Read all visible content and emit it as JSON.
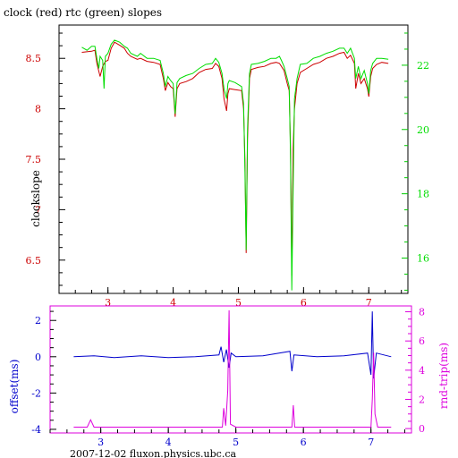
{
  "chart_data": [
    {
      "type": "line",
      "title": "clock (red) rtc (green) slopes",
      "ylabel": "clockslope",
      "x_ticks": [
        3,
        4,
        5,
        6,
        7
      ],
      "xlim": [
        2.25,
        7.6
      ],
      "y_left_ticks": [
        6.5,
        7,
        7.5,
        8,
        8.5
      ],
      "y_left_lim": [
        6.17,
        8.83
      ],
      "y_right_ticks": [
        16,
        18,
        20,
        22
      ],
      "y_right_lim": [
        14.9,
        23.25
      ],
      "grid": false,
      "series": [
        {
          "name": "clock",
          "color": "#cc0000",
          "axis": "left",
          "points": [
            [
              2.6,
              8.56
            ],
            [
              2.75,
              8.57
            ],
            [
              2.8,
              8.58
            ],
            [
              2.83,
              8.45
            ],
            [
              2.88,
              8.32
            ],
            [
              2.92,
              8.42
            ],
            [
              2.96,
              8.47
            ],
            [
              3.0,
              8.48
            ],
            [
              3.05,
              8.6
            ],
            [
              3.1,
              8.66
            ],
            [
              3.18,
              8.63
            ],
            [
              3.25,
              8.6
            ],
            [
              3.3,
              8.55
            ],
            [
              3.35,
              8.52
            ],
            [
              3.45,
              8.49
            ],
            [
              3.5,
              8.5
            ],
            [
              3.6,
              8.47
            ],
            [
              3.7,
              8.46
            ],
            [
              3.8,
              8.44
            ],
            [
              3.85,
              8.3
            ],
            [
              3.88,
              8.18
            ],
            [
              3.92,
              8.26
            ],
            [
              3.96,
              8.22
            ],
            [
              4.0,
              8.2
            ],
            [
              4.03,
              7.92
            ],
            [
              4.06,
              8.2
            ],
            [
              4.1,
              8.25
            ],
            [
              4.2,
              8.27
            ],
            [
              4.3,
              8.3
            ],
            [
              4.4,
              8.36
            ],
            [
              4.5,
              8.39
            ],
            [
              4.6,
              8.4
            ],
            [
              4.65,
              8.45
            ],
            [
              4.7,
              8.42
            ],
            [
              4.75,
              8.3
            ],
            [
              4.78,
              8.1
            ],
            [
              4.82,
              7.98
            ],
            [
              4.84,
              8.15
            ],
            [
              4.86,
              8.2
            ],
            [
              4.95,
              8.19
            ],
            [
              5.05,
              8.18
            ],
            [
              5.08,
              8.0
            ],
            [
              5.1,
              7.5
            ],
            [
              5.12,
              6.57
            ],
            [
              5.14,
              7.7
            ],
            [
              5.17,
              8.3
            ],
            [
              5.2,
              8.39
            ],
            [
              5.3,
              8.41
            ],
            [
              5.4,
              8.42
            ],
            [
              5.5,
              8.45
            ],
            [
              5.58,
              8.46
            ],
            [
              5.63,
              8.45
            ],
            [
              5.66,
              8.42
            ],
            [
              5.7,
              8.38
            ],
            [
              5.75,
              8.25
            ],
            [
              5.78,
              8.18
            ],
            [
              5.8,
              7.6
            ],
            [
              5.82,
              6.35
            ],
            [
              5.84,
              7.6
            ],
            [
              5.86,
              8.0
            ],
            [
              5.9,
              8.25
            ],
            [
              5.95,
              8.36
            ],
            [
              6.05,
              8.4
            ],
            [
              6.15,
              8.44
            ],
            [
              6.25,
              8.46
            ],
            [
              6.35,
              8.5
            ],
            [
              6.45,
              8.52
            ],
            [
              6.55,
              8.55
            ],
            [
              6.62,
              8.56
            ],
            [
              6.67,
              8.5
            ],
            [
              6.72,
              8.53
            ],
            [
              6.78,
              8.45
            ],
            [
              6.8,
              8.2
            ],
            [
              6.84,
              8.35
            ],
            [
              6.88,
              8.25
            ],
            [
              6.93,
              8.3
            ],
            [
              6.98,
              8.2
            ],
            [
              7.0,
              8.12
            ],
            [
              7.03,
              8.32
            ],
            [
              7.06,
              8.4
            ],
            [
              7.12,
              8.44
            ],
            [
              7.2,
              8.46
            ],
            [
              7.3,
              8.45
            ]
          ]
        },
        {
          "name": "rtc",
          "color": "#00dd00",
          "axis": "left",
          "points": [
            [
              2.6,
              8.61
            ],
            [
              2.68,
              8.58
            ],
            [
              2.75,
              8.62
            ],
            [
              2.8,
              8.62
            ],
            [
              2.83,
              8.5
            ],
            [
              2.86,
              8.4
            ],
            [
              2.88,
              8.52
            ],
            [
              2.92,
              8.48
            ],
            [
              2.94,
              8.2
            ],
            [
              2.96,
              8.52
            ],
            [
              3.0,
              8.55
            ],
            [
              3.05,
              8.64
            ],
            [
              3.1,
              8.68
            ],
            [
              3.18,
              8.66
            ],
            [
              3.25,
              8.62
            ],
            [
              3.3,
              8.6
            ],
            [
              3.35,
              8.55
            ],
            [
              3.45,
              8.52
            ],
            [
              3.5,
              8.55
            ],
            [
              3.6,
              8.5
            ],
            [
              3.7,
              8.5
            ],
            [
              3.8,
              8.48
            ],
            [
              3.85,
              8.35
            ],
            [
              3.88,
              8.22
            ],
            [
              3.92,
              8.32
            ],
            [
              3.96,
              8.28
            ],
            [
              4.0,
              8.25
            ],
            [
              4.03,
              7.95
            ],
            [
              4.06,
              8.26
            ],
            [
              4.1,
              8.3
            ],
            [
              4.2,
              8.33
            ],
            [
              4.3,
              8.35
            ],
            [
              4.4,
              8.4
            ],
            [
              4.5,
              8.44
            ],
            [
              4.6,
              8.45
            ],
            [
              4.65,
              8.5
            ],
            [
              4.7,
              8.46
            ],
            [
              4.75,
              8.35
            ],
            [
              4.78,
              8.2
            ],
            [
              4.82,
              8.1
            ],
            [
              4.84,
              8.25
            ],
            [
              4.86,
              8.28
            ],
            [
              4.95,
              8.26
            ],
            [
              5.05,
              8.22
            ],
            [
              5.08,
              8.05
            ],
            [
              5.1,
              7.4
            ],
            [
              5.12,
              6.6
            ],
            [
              5.14,
              7.8
            ],
            [
              5.17,
              8.35
            ],
            [
              5.2,
              8.44
            ],
            [
              5.3,
              8.45
            ],
            [
              5.4,
              8.47
            ],
            [
              5.5,
              8.5
            ],
            [
              5.58,
              8.5
            ],
            [
              5.63,
              8.52
            ],
            [
              5.66,
              8.48
            ],
            [
              5.7,
              8.42
            ],
            [
              5.75,
              8.3
            ],
            [
              5.78,
              8.22
            ],
            [
              5.8,
              7.5
            ],
            [
              5.82,
              6.2
            ],
            [
              5.84,
              7.2
            ],
            [
              5.86,
              8.1
            ],
            [
              5.9,
              8.3
            ],
            [
              5.95,
              8.44
            ],
            [
              6.05,
              8.45
            ],
            [
              6.15,
              8.5
            ],
            [
              6.25,
              8.52
            ],
            [
              6.35,
              8.55
            ],
            [
              6.45,
              8.57
            ],
            [
              6.55,
              8.6
            ],
            [
              6.62,
              8.6
            ],
            [
              6.67,
              8.55
            ],
            [
              6.72,
              8.6
            ],
            [
              6.78,
              8.5
            ],
            [
              6.8,
              8.3
            ],
            [
              6.84,
              8.42
            ],
            [
              6.88,
              8.3
            ],
            [
              6.93,
              8.38
            ],
            [
              6.98,
              8.25
            ],
            [
              7.0,
              8.15
            ],
            [
              7.03,
              8.38
            ],
            [
              7.06,
              8.45
            ],
            [
              7.12,
              8.5
            ],
            [
              7.2,
              8.5
            ],
            [
              7.3,
              8.49
            ]
          ]
        }
      ]
    },
    {
      "type": "line",
      "xlabel": "2007-12-02 fluxon.physics.ubc.ca",
      "x_ticks": [
        3,
        4,
        5,
        6,
        7
      ],
      "xlim": [
        2.25,
        7.6
      ],
      "y_left_label": "offset(ms)",
      "y_left_ticks": [
        -4,
        -2,
        0,
        2
      ],
      "y_left_lim": [
        -4.2,
        2.8
      ],
      "y_right_label": "rnd-trip(ms)",
      "y_right_ticks": [
        0,
        2,
        4,
        6,
        8
      ],
      "y_right_lim": [
        -0.3,
        8.4
      ],
      "grid": false,
      "series": [
        {
          "name": "offset",
          "color": "#0000cc",
          "axis": "left",
          "points": [
            [
              2.6,
              0.0
            ],
            [
              2.9,
              0.05
            ],
            [
              3.2,
              -0.05
            ],
            [
              3.6,
              0.05
            ],
            [
              4.0,
              -0.05
            ],
            [
              4.4,
              0.0
            ],
            [
              4.75,
              0.1
            ],
            [
              4.78,
              0.55
            ],
            [
              4.82,
              -0.3
            ],
            [
              4.86,
              0.4
            ],
            [
              4.9,
              -0.6
            ],
            [
              4.93,
              0.2
            ],
            [
              5.0,
              0.0
            ],
            [
              5.4,
              0.05
            ],
            [
              5.8,
              0.3
            ],
            [
              5.83,
              -0.8
            ],
            [
              5.86,
              0.1
            ],
            [
              6.2,
              0.0
            ],
            [
              6.6,
              0.05
            ],
            [
              6.95,
              0.2
            ],
            [
              7.0,
              -1.0
            ],
            [
              7.02,
              2.5
            ],
            [
              7.04,
              -1.2
            ],
            [
              7.08,
              0.2
            ],
            [
              7.3,
              0.0
            ]
          ]
        },
        {
          "name": "rnd-trip",
          "color": "#dd00dd",
          "axis": "right",
          "points": [
            [
              2.6,
              0.1
            ],
            [
              2.8,
              0.1
            ],
            [
              2.85,
              0.6
            ],
            [
              2.9,
              0.1
            ],
            [
              3.5,
              0.1
            ],
            [
              4.0,
              0.1
            ],
            [
              4.5,
              0.1
            ],
            [
              4.8,
              0.1
            ],
            [
              4.82,
              1.4
            ],
            [
              4.85,
              0.2
            ],
            [
              4.88,
              2.6
            ],
            [
              4.9,
              8.1
            ],
            [
              4.92,
              0.3
            ],
            [
              5.0,
              0.1
            ],
            [
              5.5,
              0.1
            ],
            [
              5.83,
              0.1
            ],
            [
              5.85,
              1.6
            ],
            [
              5.87,
              0.1
            ],
            [
              6.5,
              0.1
            ],
            [
              7.0,
              0.1
            ],
            [
              7.02,
              2.0
            ],
            [
              7.04,
              5.2
            ],
            [
              7.06,
              1.0
            ],
            [
              7.1,
              0.1
            ],
            [
              7.3,
              0.1
            ]
          ]
        }
      ]
    }
  ]
}
